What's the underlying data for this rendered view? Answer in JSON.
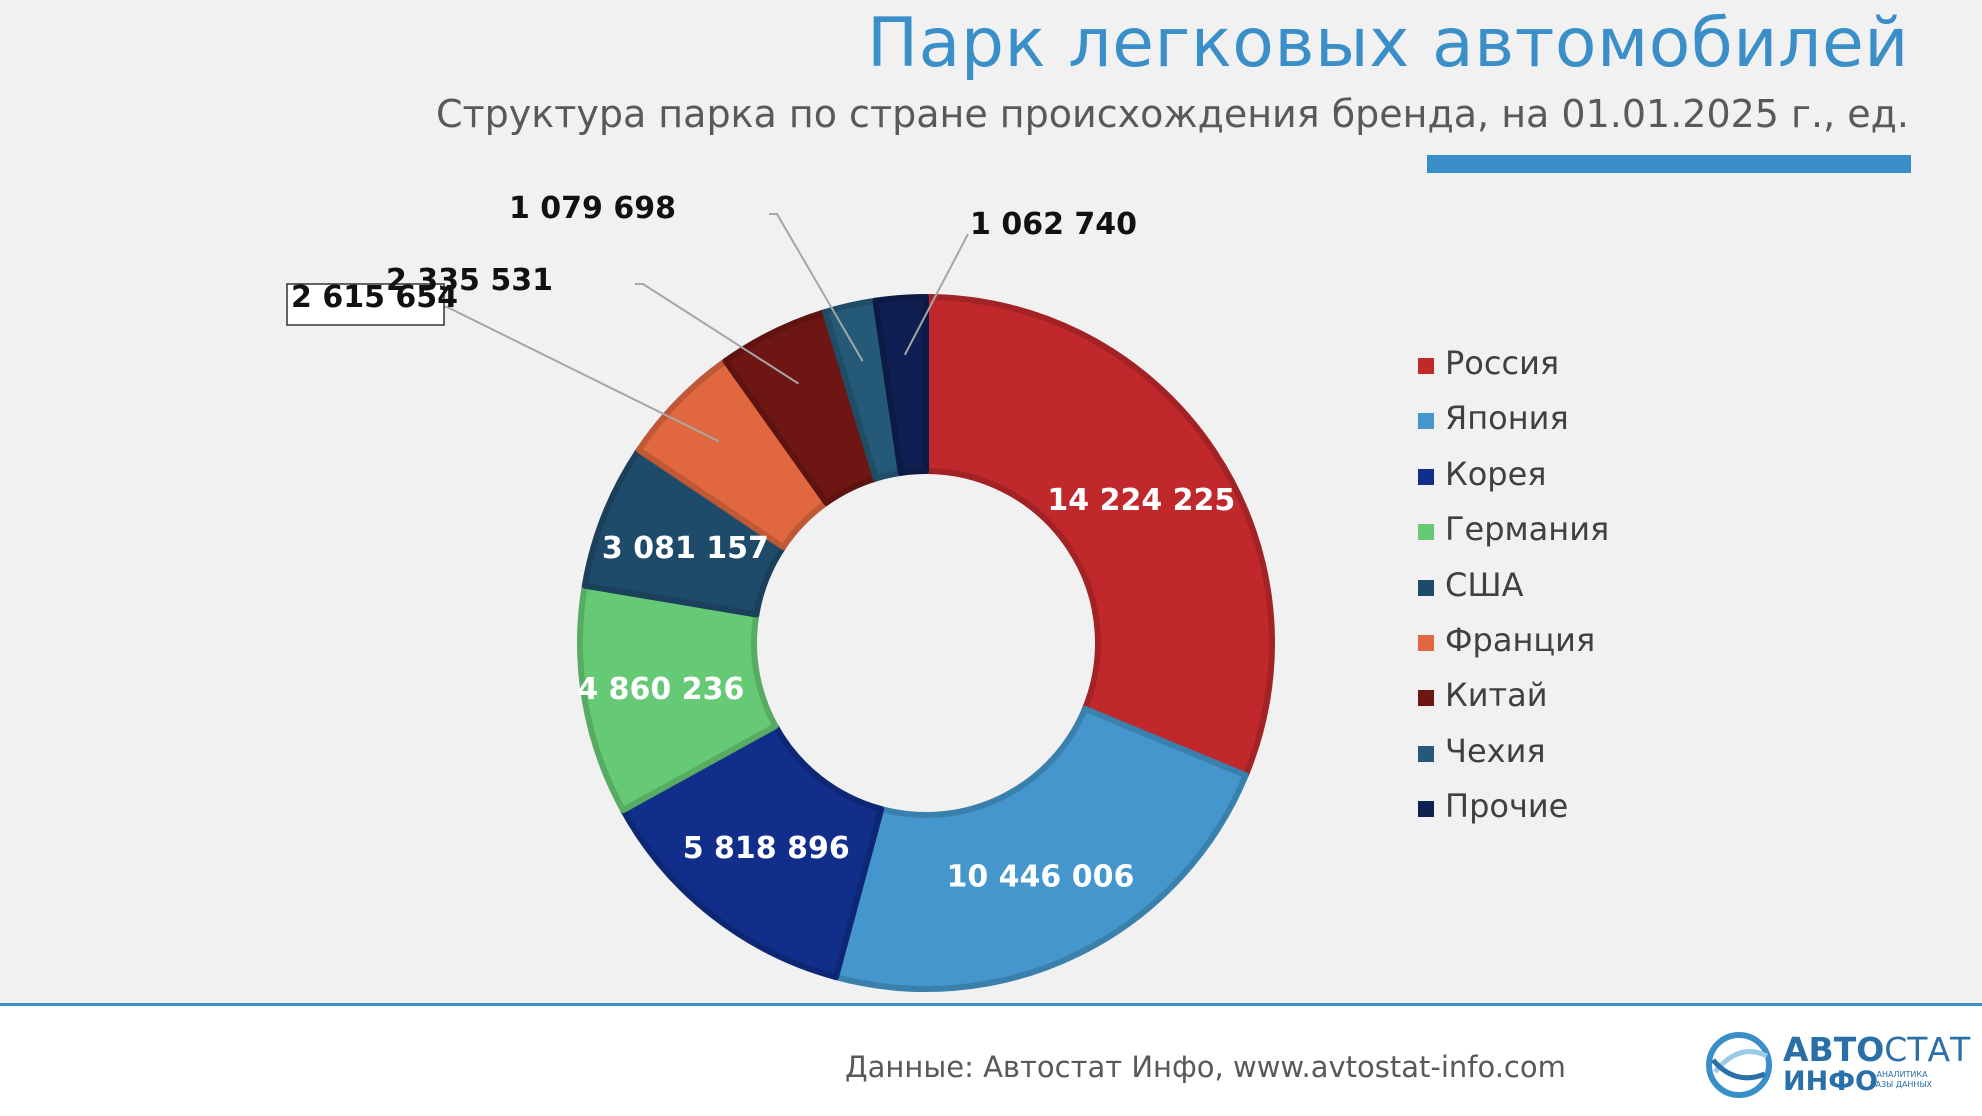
{
  "header": {
    "title": "Парк легковых автомобилей",
    "subtitle": "Структура парка по стране происхождения бренда, на 01.01.2025 г., ед."
  },
  "footer": {
    "source": "Данные: Автостат Инфо, www.avtostat-info.com",
    "logo_word1": "АВТО",
    "logo_word2": "СТАТ",
    "logo_word3": "ИНФО",
    "logo_tag_line1": "▸ АНАЛИТИКА",
    "logo_tag_line2": "БАЗЫ ДАННЫХ"
  },
  "colors": {
    "accent": "#3a8fc8"
  },
  "chart_data": {
    "type": "pie",
    "variant": "donut",
    "title": "Парк легковых автомобилей",
    "subtitle": "Структура парка по стране происхождения бренда, на 01.01.2025 г., ед.",
    "legend_position": "right",
    "categories": [
      "Россия",
      "Япония",
      "Корея",
      "Германия",
      "США",
      "Франция",
      "Китай",
      "Чехия",
      "Прочие"
    ],
    "values": [
      14224225,
      10446006,
      5818896,
      4860236,
      3081157,
      2615654,
      2335531,
      1079698,
      1062740
    ],
    "data_labels": [
      "14 224 225",
      "10 446 006",
      "5 818 896",
      "4 860 236",
      "3 081 157",
      "2 615 654",
      "2 335 531",
      "1 079 698",
      "1 062 740"
    ],
    "colors": [
      "#c0282b",
      "#4496cc",
      "#112e8a",
      "#66c975",
      "#1f4b6b",
      "#e0673f",
      "#6e1614",
      "#245a78",
      "#0f1f52"
    ]
  }
}
